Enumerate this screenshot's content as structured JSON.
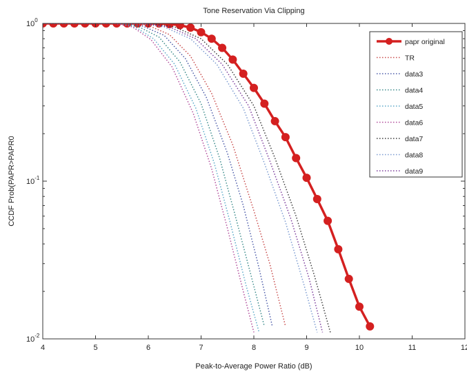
{
  "chart_data": {
    "type": "line",
    "title": "Tone Reservation Via Clipping",
    "xlabel": "Peak-to-Average Power Ratio (dB)",
    "ylabel": "CCDF Prob(PAPR>PAPR0",
    "xlim": [
      4,
      12
    ],
    "ylim": [
      0.01,
      1
    ],
    "yscale": "log",
    "x_ticks": [
      "4",
      "5",
      "6",
      "7",
      "8",
      "9",
      "10",
      "11",
      "12"
    ],
    "y_ticks": [
      {
        "value": 1,
        "mantissa": "10",
        "exp": "0"
      },
      {
        "value": 0.1,
        "mantissa": "10",
        "exp": "-1"
      },
      {
        "value": 0.01,
        "mantissa": "10",
        "exp": "-2"
      }
    ],
    "grid": false,
    "legend_position": "top-right",
    "series": [
      {
        "name": "papr original",
        "color": "#d42020",
        "style": "solid-marker",
        "points": [
          [
            4.0,
            1
          ],
          [
            4.2,
            1
          ],
          [
            4.4,
            1
          ],
          [
            4.6,
            1
          ],
          [
            4.8,
            1
          ],
          [
            5.0,
            1
          ],
          [
            5.2,
            1
          ],
          [
            5.4,
            1
          ],
          [
            5.6,
            1
          ],
          [
            5.8,
            1
          ],
          [
            6.0,
            1
          ],
          [
            6.2,
            1
          ],
          [
            6.4,
            0.99
          ],
          [
            6.6,
            0.975
          ],
          [
            6.8,
            0.94
          ],
          [
            7.0,
            0.88
          ],
          [
            7.2,
            0.8
          ],
          [
            7.4,
            0.7
          ],
          [
            7.6,
            0.59
          ],
          [
            7.8,
            0.48
          ],
          [
            8.0,
            0.39
          ],
          [
            8.2,
            0.31
          ],
          [
            8.4,
            0.24
          ],
          [
            8.6,
            0.19
          ],
          [
            8.8,
            0.14
          ],
          [
            9.0,
            0.105
          ],
          [
            9.2,
            0.077
          ],
          [
            9.4,
            0.056
          ],
          [
            9.6,
            0.037
          ],
          [
            9.8,
            0.024
          ],
          [
            10.0,
            0.016
          ],
          [
            10.2,
            0.012
          ]
        ]
      },
      {
        "name": "TR",
        "color": "#c84a4a",
        "style": "dotted",
        "points": [
          [
            4.0,
            1
          ],
          [
            5.6,
            1
          ],
          [
            6.0,
            0.97
          ],
          [
            6.4,
            0.85
          ],
          [
            6.8,
            0.62
          ],
          [
            7.2,
            0.36
          ],
          [
            7.6,
            0.17
          ],
          [
            8.0,
            0.065
          ],
          [
            8.3,
            0.03
          ],
          [
            8.6,
            0.012
          ]
        ]
      },
      {
        "name": "data3",
        "color": "#4a5aa8",
        "style": "dotted",
        "points": [
          [
            4.0,
            1
          ],
          [
            5.5,
            1
          ],
          [
            5.9,
            0.96
          ],
          [
            6.3,
            0.84
          ],
          [
            6.7,
            0.6
          ],
          [
            7.1,
            0.34
          ],
          [
            7.5,
            0.15
          ],
          [
            7.8,
            0.07
          ],
          [
            8.1,
            0.028
          ],
          [
            8.35,
            0.012
          ]
        ]
      },
      {
        "name": "data4",
        "color": "#3a8a8a",
        "style": "dotted",
        "points": [
          [
            4.0,
            1
          ],
          [
            5.45,
            1
          ],
          [
            5.8,
            0.96
          ],
          [
            6.2,
            0.82
          ],
          [
            6.6,
            0.57
          ],
          [
            7.0,
            0.31
          ],
          [
            7.35,
            0.14
          ],
          [
            7.65,
            0.06
          ],
          [
            7.95,
            0.025
          ],
          [
            8.2,
            0.012
          ]
        ]
      },
      {
        "name": "data5",
        "color": "#5aa8c8",
        "style": "dotted",
        "points": [
          [
            4.0,
            1
          ],
          [
            5.4,
            1
          ],
          [
            5.75,
            0.95
          ],
          [
            6.1,
            0.8
          ],
          [
            6.5,
            0.55
          ],
          [
            6.9,
            0.29
          ],
          [
            7.25,
            0.13
          ],
          [
            7.55,
            0.055
          ],
          [
            7.85,
            0.022
          ],
          [
            8.1,
            0.011
          ]
        ]
      },
      {
        "name": "data6",
        "color": "#b04a9a",
        "style": "dotted",
        "points": [
          [
            4.0,
            1
          ],
          [
            5.35,
            1
          ],
          [
            5.7,
            0.95
          ],
          [
            6.05,
            0.79
          ],
          [
            6.45,
            0.53
          ],
          [
            6.85,
            0.27
          ],
          [
            7.2,
            0.12
          ],
          [
            7.5,
            0.05
          ],
          [
            7.8,
            0.02
          ],
          [
            8.0,
            0.011
          ]
        ]
      },
      {
        "name": "data7",
        "color": "#3a3a3a",
        "style": "dotted",
        "points": [
          [
            4.0,
            1
          ],
          [
            6.0,
            1
          ],
          [
            6.5,
            0.95
          ],
          [
            7.0,
            0.8
          ],
          [
            7.5,
            0.55
          ],
          [
            8.0,
            0.3
          ],
          [
            8.4,
            0.14
          ],
          [
            8.8,
            0.06
          ],
          [
            9.15,
            0.025
          ],
          [
            9.45,
            0.011
          ]
        ]
      },
      {
        "name": "data8",
        "color": "#7a9ad0",
        "style": "dotted",
        "points": [
          [
            4.0,
            1
          ],
          [
            5.8,
            1
          ],
          [
            6.3,
            0.95
          ],
          [
            6.8,
            0.8
          ],
          [
            7.3,
            0.55
          ],
          [
            7.8,
            0.29
          ],
          [
            8.2,
            0.13
          ],
          [
            8.6,
            0.055
          ],
          [
            8.95,
            0.022
          ],
          [
            9.2,
            0.011
          ]
        ]
      },
      {
        "name": "data9",
        "color": "#7a3a9a",
        "style": "dotted",
        "points": [
          [
            4.0,
            1
          ],
          [
            5.9,
            1
          ],
          [
            6.4,
            0.95
          ],
          [
            6.9,
            0.8
          ],
          [
            7.4,
            0.55
          ],
          [
            7.9,
            0.3
          ],
          [
            8.3,
            0.135
          ],
          [
            8.7,
            0.058
          ],
          [
            9.05,
            0.024
          ],
          [
            9.3,
            0.011
          ]
        ]
      }
    ]
  }
}
